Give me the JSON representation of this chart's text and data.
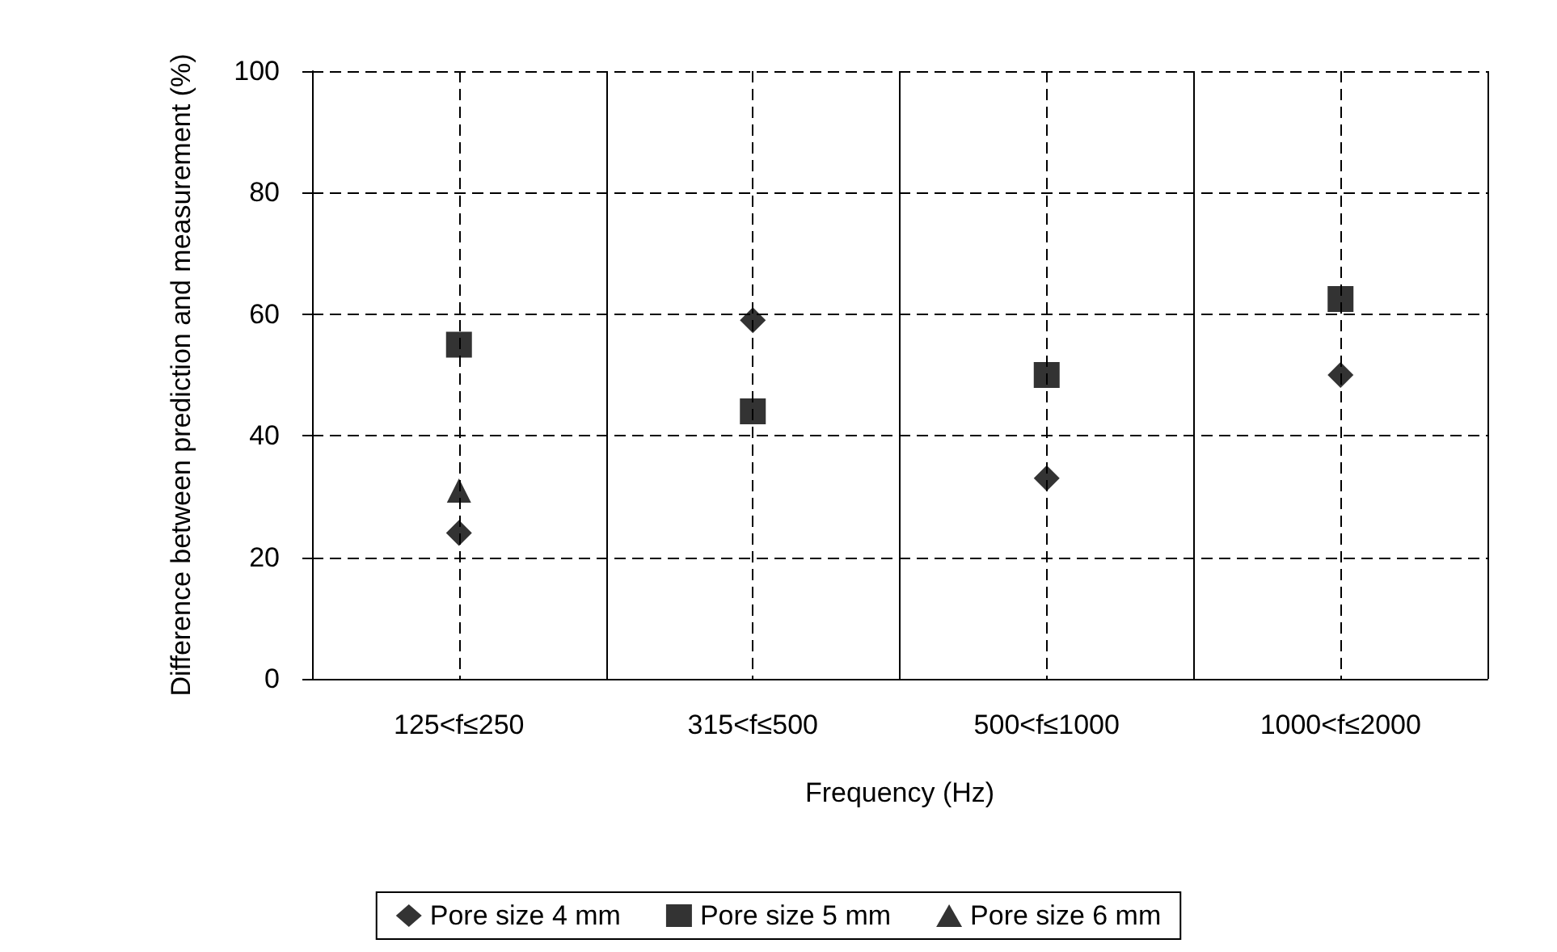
{
  "chart_data": {
    "type": "scatter",
    "xlabel": "Frequency (Hz)",
    "ylabel": "Difference between prediction and measurement (%)",
    "categories": [
      "125<f≤250",
      "315<f≤500",
      "500<f≤1000",
      "1000<f≤2000"
    ],
    "series": [
      {
        "name": "Pore size 4 mm",
        "color": "#000000",
        "marker": "diamond",
        "values": [
          24,
          59,
          33,
          50
        ]
      },
      {
        "name": "Pore size 5 mm",
        "color": "#000000",
        "marker": "square",
        "values": [
          55,
          44,
          50,
          62.5
        ]
      },
      {
        "name": "Pore size 6 mm",
        "color": "#000000",
        "marker": "triangle",
        "values": [
          31,
          null,
          null,
          null
        ]
      }
    ],
    "ylim": [
      0,
      100
    ],
    "yticks": [
      0,
      20,
      40,
      60,
      80,
      100
    ],
    "grid": true,
    "legend": "bottom"
  }
}
